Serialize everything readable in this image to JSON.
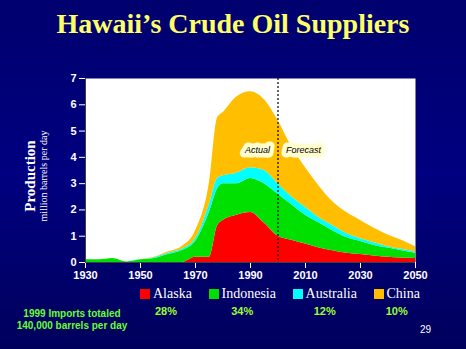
{
  "chart_data": {
    "type": "area",
    "title": "Hawaii’s Crude Oil Suppliers",
    "ylabel": [
      "Production",
      "million barrels per day"
    ],
    "x": [
      1930,
      1935,
      1940,
      1945,
      1950,
      1955,
      1960,
      1965,
      1970,
      1975,
      1978,
      1980,
      1985,
      1990,
      1995,
      2000,
      2005,
      2010,
      2015,
      2020,
      2025,
      2030,
      2035,
      2040,
      2045,
      2050
    ],
    "series": [
      {
        "name": "Alaska",
        "color": "#ff0000",
        "share": 28,
        "share_label": "28%",
        "values": [
          0,
          0,
          0,
          0,
          0,
          0,
          0,
          0,
          0.2,
          0.2,
          1.4,
          1.6,
          1.8,
          1.9,
          1.5,
          1.0,
          0.85,
          0.7,
          0.55,
          0.45,
          0.35,
          0.3,
          0.25,
          0.2,
          0.17,
          0.15
        ]
      },
      {
        "name": "Indonesia",
        "color": "#00e000",
        "share": 34,
        "share_label": "34%",
        "values": [
          0.1,
          0.1,
          0.15,
          0.02,
          0.1,
          0.15,
          0.3,
          0.45,
          0.6,
          1.7,
          1.4,
          1.4,
          1.2,
          1.3,
          1.5,
          1.6,
          1.35,
          1.1,
          0.95,
          0.75,
          0.6,
          0.5,
          0.4,
          0.35,
          0.28,
          0.2
        ]
      },
      {
        "name": "Australia",
        "color": "#00ffff",
        "share": 12,
        "share_label": "12%",
        "values": [
          0,
          0,
          0,
          0,
          0,
          0.03,
          0.05,
          0.05,
          0.1,
          0.3,
          0.4,
          0.3,
          0.4,
          0.4,
          0.5,
          0.4,
          0.3,
          0.3,
          0.2,
          0.2,
          0.15,
          0.1,
          0.1,
          0.05,
          0.05,
          0.05
        ]
      },
      {
        "name": "China",
        "color": "#ffbf00",
        "share": 10,
        "share_label": "10%",
        "values": [
          0,
          0,
          0,
          0,
          0,
          0.02,
          0.05,
          0.1,
          0.3,
          0.8,
          2.3,
          2.4,
          2.9,
          2.9,
          2.7,
          2.4,
          1.9,
          1.5,
          1.2,
          0.9,
          0.8,
          0.7,
          0.55,
          0.45,
          0.35,
          0.2
        ]
      }
    ],
    "xlim": [
      1930,
      2050
    ],
    "xticks": [
      1930,
      1950,
      1970,
      1990,
      2010,
      2030,
      2050
    ],
    "ylim": [
      0,
      7
    ],
    "yticks": [
      0,
      1,
      2,
      3,
      4,
      5,
      6,
      7
    ],
    "stacked": true,
    "grid": false,
    "legend": "bottom",
    "forecast_start": 2000,
    "annotations": [
      "Actual",
      "Forecast"
    ],
    "note": [
      "1999 Imports totaled",
      "140,000 barrels per day"
    ],
    "page_number": 29
  }
}
